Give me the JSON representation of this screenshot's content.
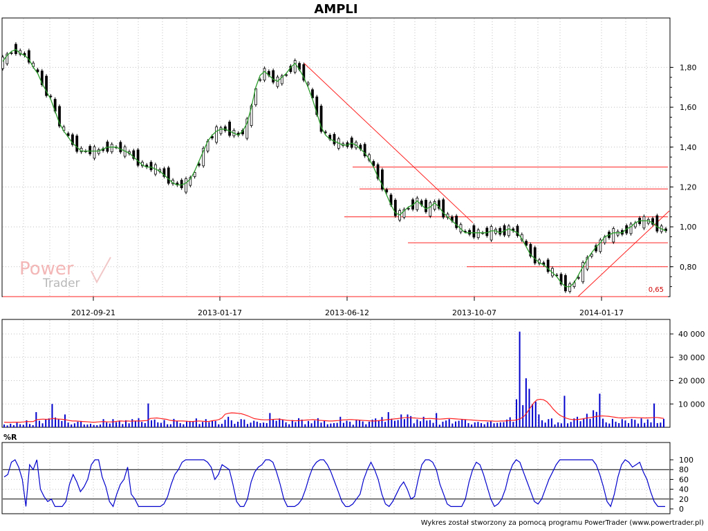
{
  "chart_data": [
    {
      "type": "line",
      "title": "AMPLI",
      "xlabel": "",
      "ylabel": "",
      "x_ticks": [
        "2012-09-21",
        "2013-01-17",
        "2013-06-12",
        "2013-10-07",
        "2014-01-17"
      ],
      "y_ticks": [
        "0,80",
        "1,00",
        "1,20",
        "1,40",
        "1,60",
        "1,80"
      ],
      "ylim": [
        0.65,
        1.9
      ],
      "grid": true,
      "series": [
        {
          "values": [
            1.83,
            1.86,
            1.88,
            1.89,
            1.87,
            1.86,
            1.84,
            1.8,
            1.77,
            1.72,
            1.68,
            1.64,
            1.58,
            1.52,
            1.48,
            1.45,
            1.42,
            1.4,
            1.38,
            1.38,
            1.38,
            1.38,
            1.38,
            1.39,
            1.4,
            1.4,
            1.4,
            1.39,
            1.38,
            1.37,
            1.35,
            1.33,
            1.31,
            1.3,
            1.3,
            1.29,
            1.28,
            1.26,
            1.24,
            1.22,
            1.21,
            1.21,
            1.22,
            1.24,
            1.28,
            1.33,
            1.38,
            1.43,
            1.46,
            1.48,
            1.49,
            1.49,
            1.48,
            1.47,
            1.46,
            1.48,
            1.52,
            1.6,
            1.7,
            1.76,
            1.78,
            1.76,
            1.74,
            1.73,
            1.75,
            1.77,
            1.8,
            1.82,
            1.79,
            1.75,
            1.7,
            1.64,
            1.57,
            1.5,
            1.46,
            1.44,
            1.43,
            1.42,
            1.41,
            1.41,
            1.42,
            1.41,
            1.39,
            1.37,
            1.34,
            1.3,
            1.25,
            1.21,
            1.16,
            1.11,
            1.07,
            1.06,
            1.08,
            1.1,
            1.11,
            1.13,
            1.11,
            1.09,
            1.1,
            1.12,
            1.1,
            1.07,
            1.05,
            1.03,
            1.01,
            0.99,
            0.97,
            0.97,
            0.97,
            0.97,
            0.97,
            0.97,
            0.98,
            0.98,
            0.97,
            0.98,
            0.99,
            0.98,
            0.97,
            0.94,
            0.9,
            0.86,
            0.84,
            0.82,
            0.81,
            0.79,
            0.77,
            0.75,
            0.72,
            0.7,
            0.7,
            0.72,
            0.76,
            0.8,
            0.84,
            0.87,
            0.9,
            0.92,
            0.95,
            0.96,
            0.97,
            0.97,
            0.97,
            0.99,
            1.0,
            1.02,
            1.03,
            1.03,
            1.03,
            1.02,
            1.0,
            0.99,
            0.98
          ]
        }
      ],
      "annotations": [
        "0,65"
      ]
    },
    {
      "type": "bar",
      "title": "",
      "y_ticks": [
        "10 000",
        "20 000",
        "30 000",
        "40 000"
      ],
      "ylim": [
        0,
        43000
      ],
      "series": [
        {
          "values": [
            1200,
            800,
            1500,
            900,
            2000,
            1300,
            1100,
            3000,
            1400,
            900,
            6500,
            2800,
            1700,
            3500,
            3800,
            10000,
            4200,
            3400,
            2700,
            5500,
            2000,
            1200,
            1700,
            2400,
            2700,
            1200,
            1200,
            1500,
            1000,
            900,
            1200,
            3500,
            2100,
            1600,
            3500,
            2200,
            2900,
            1400,
            3000,
            1700,
            3500,
            2600,
            3900,
            2300,
            1800,
            10200,
            3000,
            3300,
            2100,
            1900,
            3100,
            1300,
            1300,
            3600,
            2700,
            1800,
            1300,
            2600,
            2700,
            2400,
            3800,
            1400,
            2300,
            3500,
            2200,
            2700,
            2700,
            1300,
            1500,
            3200,
            4500,
            3000,
            1500,
            2400,
            3500,
            3300,
            1400,
            2000,
            2800,
            2400,
            1800,
            2000,
            1800,
            6100,
            3400,
            2800,
            3800,
            3200,
            2100,
            1300,
            3100,
            2200,
            3900,
            3300,
            1300,
            2700,
            1700,
            2900,
            3900,
            2000,
            2900,
            1300,
            1600,
            1800,
            1900,
            4500,
            1900,
            2800,
            2400,
            1100,
            3300,
            3200,
            2500,
            1300,
            2400,
            3300,
            3800,
            2800,
            4400,
            2300,
            6500,
            3700,
            2800,
            3100,
            5500,
            3500,
            5500,
            4800,
            1700,
            3400,
            2600,
            4500,
            2900,
            3100,
            1900,
            6100,
            1100,
            2400,
            2900,
            3500,
            1600,
            2500,
            2800,
            3300,
            3200,
            1800,
            1200,
            2100,
            2300,
            1800,
            1300,
            2200,
            2500,
            1700,
            1900,
            2100,
            2200,
            3300,
            4300,
            2300,
            12000,
            41000,
            9500,
            21000,
            16500,
            10000,
            11000,
            5500,
            3000,
            2000,
            3500,
            3800,
            1200,
            2100,
            1700,
            13500,
            1700,
            2300,
            3800,
            4500,
            2600,
            3900,
            5800,
            3600,
            7300,
            6600,
            14400,
            3700,
            2100,
            1600,
            3600,
            2400,
            1800,
            3500,
            2900,
            1800,
            3600,
            3200,
            1600,
            3800,
            1900,
            3400,
            2100,
            10200,
            1800,
            2000,
            3600
          ]
        },
        {
          "values": [
            2200,
            2100,
            2100,
            2200,
            2200,
            2200,
            2300,
            2500,
            2400,
            2500,
            3300,
            3400,
            3500,
            3400,
            3500,
            3800,
            3600,
            3500,
            3400,
            3200,
            2900,
            2700,
            2700,
            2600,
            2500,
            2400,
            2300,
            2200,
            2200,
            2300,
            2400,
            2400,
            2300,
            2300,
            2400,
            2600,
            2700,
            2600,
            2700,
            2600,
            2700,
            2700,
            2700,
            2800,
            2900,
            3800,
            3900,
            4000,
            3800,
            3600,
            3400,
            3000,
            2800,
            2700,
            2700,
            2700,
            2600,
            2500,
            2500,
            2600,
            2700,
            2600,
            2500,
            2500,
            2800,
            3000,
            3300,
            4000,
            5600,
            6000,
            6200,
            6100,
            6000,
            5800,
            5400,
            4900,
            4300,
            3700,
            3500,
            3300,
            3200,
            3200,
            3300,
            3400,
            3500,
            3400,
            3200,
            3000,
            2900,
            2800,
            2800,
            2900,
            3000,
            3100,
            3200,
            3300,
            3200,
            3000,
            2900,
            2800,
            2700,
            2700,
            2800,
            2900,
            3100,
            3200,
            3300,
            3300,
            3200,
            3100,
            3000,
            2900,
            2800,
            2700,
            2700,
            2800,
            3000,
            3100,
            3300,
            3400,
            3600,
            3700,
            3900,
            4100,
            4200,
            4100,
            4000,
            3900,
            3800,
            3800,
            3700,
            3800,
            3700,
            3600,
            3500,
            3600,
            3700,
            3800,
            3700,
            3600,
            3500,
            3400,
            3300,
            3200,
            3100,
            3000,
            2900,
            2800,
            2800,
            2700,
            2700,
            2600,
            2600,
            2700,
            2700,
            2800,
            2900,
            3000,
            3300,
            3800,
            4700,
            6500,
            8500,
            10500,
            11800,
            12000,
            11800,
            11000,
            9500,
            7800,
            6400,
            5200,
            4500,
            3900,
            3500,
            3300,
            3300,
            3400,
            3600,
            3900,
            4100,
            4300,
            4600,
            4800,
            4900,
            4800,
            4700,
            4500,
            4300,
            4100,
            4000,
            4000,
            4100,
            4200,
            4200,
            4100,
            4100,
            4000,
            4000,
            4100,
            4200,
            4200,
            4000,
            3800
          ]
        }
      ]
    },
    {
      "type": "line",
      "title": "%R",
      "y_ticks": [
        "0",
        "20",
        "40",
        "60",
        "80",
        "100"
      ],
      "ylim": [
        0,
        100
      ],
      "series": [
        {
          "values": [
            65,
            70,
            95,
            100,
            85,
            60,
            5,
            90,
            80,
            100,
            40,
            25,
            15,
            20,
            5,
            5,
            5,
            15,
            50,
            70,
            55,
            35,
            45,
            60,
            90,
            100,
            100,
            65,
            45,
            15,
            5,
            30,
            50,
            60,
            85,
            30,
            20,
            5,
            5,
            5,
            5,
            5,
            5,
            5,
            10,
            25,
            50,
            70,
            80,
            95,
            100,
            100,
            100,
            100,
            100,
            100,
            95,
            85,
            60,
            70,
            90,
            85,
            80,
            50,
            15,
            5,
            5,
            20,
            55,
            75,
            85,
            90,
            100,
            100,
            95,
            75,
            50,
            20,
            5,
            5,
            5,
            10,
            20,
            40,
            65,
            85,
            95,
            100,
            100,
            90,
            75,
            55,
            35,
            15,
            5,
            5,
            10,
            20,
            30,
            60,
            80,
            95,
            80,
            60,
            30,
            10,
            5,
            15,
            30,
            45,
            55,
            40,
            20,
            25,
            60,
            90,
            100,
            100,
            95,
            80,
            50,
            30,
            10,
            5,
            5,
            5,
            5,
            20,
            55,
            80,
            95,
            90,
            70,
            45,
            20,
            5,
            10,
            20,
            40,
            70,
            90,
            100,
            95,
            75,
            55,
            35,
            15,
            10,
            20,
            40,
            60,
            75,
            90,
            100,
            100,
            100,
            100,
            100,
            100,
            100,
            100,
            100,
            100,
            90,
            70,
            45,
            15,
            5,
            30,
            65,
            90,
            100,
            95,
            85,
            90,
            95,
            75,
            60,
            35,
            15,
            5,
            5,
            5
          ]
        }
      ]
    }
  ],
  "watermark": {
    "line1": "Power",
    "line2": "Trader"
  },
  "footer": "Wykres został stworzony za pomocą programu PowerTrader (www.powertrader.pl)",
  "colors": {
    "price": "#000000",
    "ma": "#2a9d2a",
    "trend": "#ff2020",
    "volume": "#0000cc",
    "volume_ma": "#ff2020",
    "williams": "#0000cc"
  }
}
